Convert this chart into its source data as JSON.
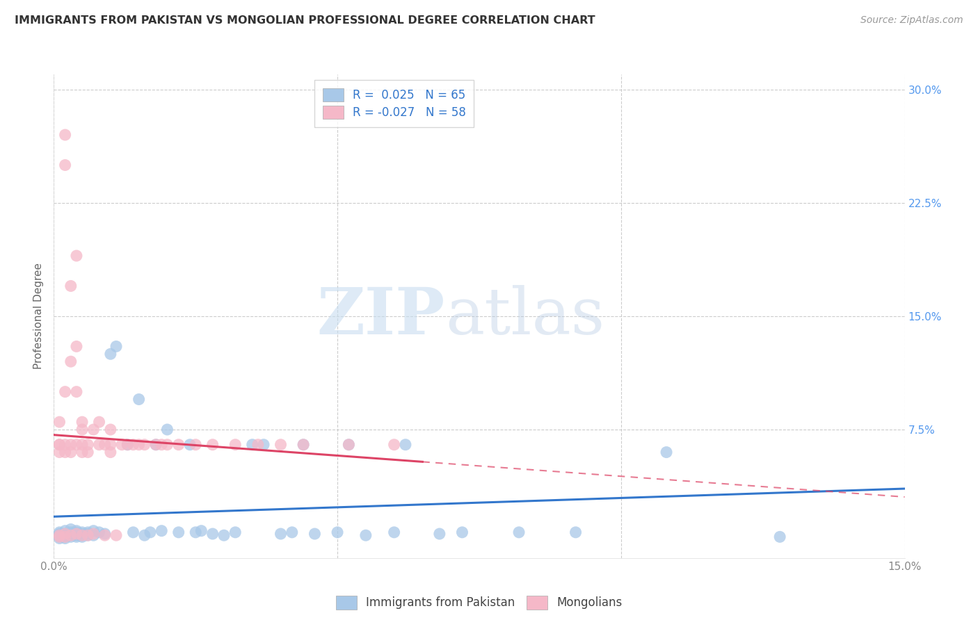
{
  "title": "IMMIGRANTS FROM PAKISTAN VS MONGOLIAN PROFESSIONAL DEGREE CORRELATION CHART",
  "source": "Source: ZipAtlas.com",
  "ylabel": "Professional Degree",
  "xlim": [
    0.0,
    0.15
  ],
  "ylim": [
    -0.01,
    0.31
  ],
  "xticks": [
    0.0,
    0.05,
    0.1,
    0.15
  ],
  "xticklabels": [
    "0.0%",
    "",
    "",
    "15.0%"
  ],
  "yticks": [
    0.075,
    0.15,
    0.225,
    0.3
  ],
  "yticklabels": [
    "7.5%",
    "15.0%",
    "22.5%",
    "30.0%"
  ],
  "legend_labels": [
    "Immigrants from Pakistan",
    "Mongolians"
  ],
  "series1_color": "#a8c8e8",
  "series2_color": "#f5b8c8",
  "series1_line_color": "#3377cc",
  "series2_line_color": "#dd4466",
  "r1": 0.025,
  "n1": 65,
  "r2": -0.027,
  "n2": 58,
  "watermark_zip": "ZIP",
  "watermark_atlas": "atlas",
  "grid_color": "#cccccc",
  "background_color": "#ffffff",
  "series1_x": [
    0.001,
    0.001,
    0.001,
    0.001,
    0.001,
    0.002,
    0.002,
    0.002,
    0.002,
    0.002,
    0.003,
    0.003,
    0.003,
    0.003,
    0.003,
    0.004,
    0.004,
    0.004,
    0.004,
    0.004,
    0.005,
    0.005,
    0.005,
    0.005,
    0.006,
    0.006,
    0.006,
    0.007,
    0.007,
    0.008,
    0.009,
    0.01,
    0.011,
    0.013,
    0.014,
    0.015,
    0.016,
    0.017,
    0.018,
    0.019,
    0.02,
    0.022,
    0.024,
    0.025,
    0.026,
    0.028,
    0.03,
    0.032,
    0.035,
    0.037,
    0.04,
    0.042,
    0.044,
    0.046,
    0.05,
    0.052,
    0.055,
    0.06,
    0.062,
    0.068,
    0.072,
    0.082,
    0.092,
    0.108,
    0.128
  ],
  "series1_y": [
    0.005,
    0.006,
    0.004,
    0.003,
    0.007,
    0.005,
    0.004,
    0.006,
    0.003,
    0.008,
    0.006,
    0.005,
    0.007,
    0.004,
    0.009,
    0.005,
    0.007,
    0.006,
    0.004,
    0.008,
    0.005,
    0.007,
    0.006,
    0.004,
    0.005,
    0.007,
    0.006,
    0.008,
    0.005,
    0.007,
    0.006,
    0.125,
    0.13,
    0.065,
    0.007,
    0.095,
    0.005,
    0.007,
    0.065,
    0.008,
    0.075,
    0.007,
    0.065,
    0.007,
    0.008,
    0.006,
    0.005,
    0.007,
    0.065,
    0.065,
    0.006,
    0.007,
    0.065,
    0.006,
    0.007,
    0.065,
    0.005,
    0.007,
    0.065,
    0.006,
    0.007,
    0.007,
    0.007,
    0.06,
    0.004
  ],
  "series2_x": [
    0.001,
    0.001,
    0.001,
    0.001,
    0.001,
    0.001,
    0.002,
    0.002,
    0.002,
    0.002,
    0.002,
    0.002,
    0.002,
    0.003,
    0.003,
    0.003,
    0.003,
    0.003,
    0.004,
    0.004,
    0.004,
    0.004,
    0.004,
    0.005,
    0.005,
    0.005,
    0.005,
    0.005,
    0.006,
    0.006,
    0.006,
    0.007,
    0.007,
    0.008,
    0.008,
    0.009,
    0.009,
    0.01,
    0.01,
    0.01,
    0.011,
    0.012,
    0.013,
    0.014,
    0.015,
    0.016,
    0.018,
    0.019,
    0.02,
    0.022,
    0.025,
    0.028,
    0.032,
    0.036,
    0.04,
    0.044,
    0.052,
    0.06
  ],
  "series2_y": [
    0.08,
    0.065,
    0.065,
    0.06,
    0.005,
    0.004,
    0.27,
    0.25,
    0.1,
    0.065,
    0.06,
    0.006,
    0.004,
    0.17,
    0.12,
    0.065,
    0.06,
    0.005,
    0.19,
    0.13,
    0.1,
    0.065,
    0.006,
    0.08,
    0.075,
    0.065,
    0.06,
    0.005,
    0.065,
    0.06,
    0.005,
    0.075,
    0.006,
    0.08,
    0.065,
    0.065,
    0.005,
    0.075,
    0.065,
    0.06,
    0.005,
    0.065,
    0.065,
    0.065,
    0.065,
    0.065,
    0.065,
    0.065,
    0.065,
    0.065,
    0.065,
    0.065,
    0.065,
    0.065,
    0.065,
    0.065,
    0.065,
    0.065
  ]
}
